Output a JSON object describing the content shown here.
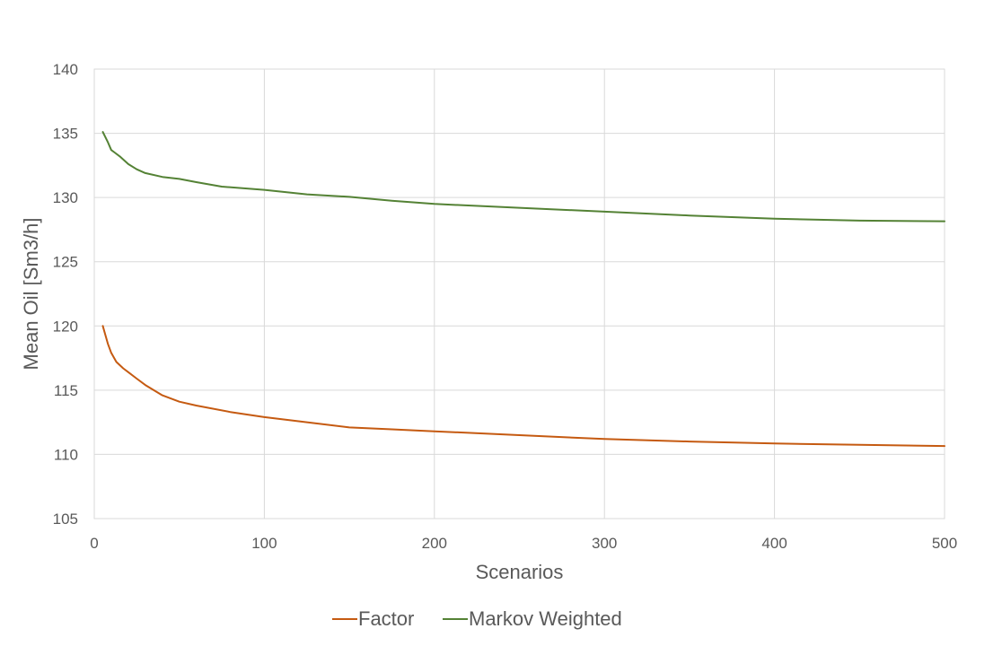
{
  "chart_data": {
    "type": "line",
    "title": "",
    "xlabel": "Scenarios",
    "ylabel": "Mean Oil [Sm3/h]",
    "xlim": [
      0,
      500
    ],
    "ylim": [
      105,
      140
    ],
    "x_ticks": [
      0,
      100,
      200,
      300,
      400,
      500
    ],
    "y_ticks": [
      105,
      110,
      115,
      120,
      125,
      130,
      135,
      140
    ],
    "grid": true,
    "legend_position": "bottom",
    "colors": {
      "Factor": "#c55a11",
      "Markov Weighted": "#548235"
    },
    "series": [
      {
        "name": "Factor",
        "x": [
          5,
          8,
          10,
          13,
          17,
          20,
          25,
          30,
          40,
          50,
          60,
          80,
          100,
          125,
          150,
          175,
          200,
          250,
          300,
          350,
          400,
          450,
          500
        ],
        "y": [
          120.0,
          118.6,
          117.9,
          117.2,
          116.7,
          116.4,
          115.9,
          115.4,
          114.6,
          114.1,
          113.8,
          113.3,
          112.9,
          112.5,
          112.1,
          111.95,
          111.8,
          111.5,
          111.2,
          111.0,
          110.85,
          110.75,
          110.65
        ]
      },
      {
        "name": "Markov Weighted",
        "x": [
          5,
          8,
          10,
          12,
          15,
          20,
          25,
          30,
          40,
          50,
          60,
          75,
          100,
          125,
          150,
          175,
          200,
          250,
          300,
          350,
          400,
          450,
          500
        ],
        "y": [
          135.1,
          134.3,
          133.7,
          133.5,
          133.2,
          132.6,
          132.2,
          131.9,
          131.6,
          131.45,
          131.2,
          130.85,
          130.6,
          130.25,
          130.05,
          129.75,
          129.5,
          129.2,
          128.9,
          128.6,
          128.35,
          128.2,
          128.15
        ]
      }
    ]
  }
}
